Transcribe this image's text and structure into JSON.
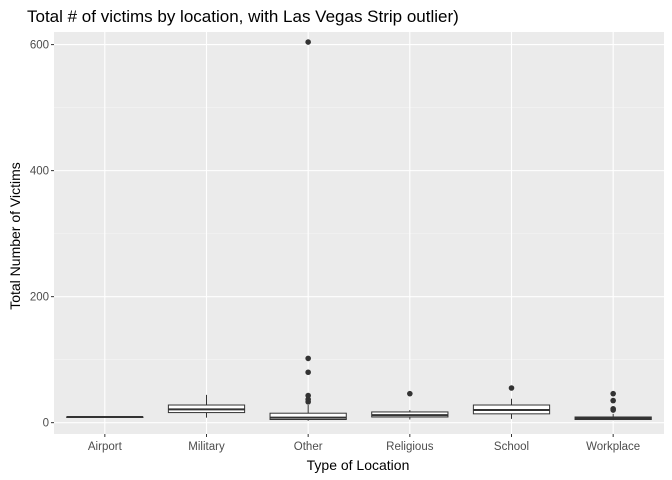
{
  "chart_data": {
    "type": "boxplot",
    "title": "Total # of victims by location, with Las Vegas Strip outlier)",
    "xlabel": "Type of Location",
    "ylabel": "Total Number of Victims",
    "ylim": [
      -18,
      620
    ],
    "yticks": [
      0,
      200,
      400,
      600
    ],
    "grid": true,
    "categories": [
      "Airport",
      "Military",
      "Other",
      "Religious",
      "School",
      "Workplace"
    ],
    "boxes": [
      {
        "category": "Airport",
        "whisker_low": 9,
        "q1": 9,
        "median": 9,
        "q3": 9,
        "whisker_high": 9,
        "outliers": []
      },
      {
        "category": "Military",
        "whisker_low": 8,
        "q1": 16,
        "median": 21,
        "q3": 28,
        "whisker_high": 44,
        "outliers": []
      },
      {
        "category": "Other",
        "whisker_low": 3,
        "q1": 5,
        "median": 8,
        "q3": 15,
        "whisker_high": 28,
        "outliers": [
          33,
          37,
          43,
          80,
          102,
          604
        ]
      },
      {
        "category": "Religious",
        "whisker_low": 5,
        "q1": 9,
        "median": 12,
        "q3": 17,
        "whisker_high": 20,
        "outliers": [
          46
        ]
      },
      {
        "category": "School",
        "whisker_low": 6,
        "q1": 14,
        "median": 20,
        "q3": 28,
        "whisker_high": 38,
        "outliers": [
          55
        ]
      },
      {
        "category": "Workplace",
        "whisker_low": 4,
        "q1": 5,
        "median": 7,
        "q3": 9,
        "whisker_high": 14,
        "outliers": [
          20,
          22,
          35,
          46
        ]
      }
    ],
    "colors": {
      "panel_bg": "#ebebeb",
      "grid_major": "#ffffff",
      "grid_minor": "#f5f5f5",
      "box_line": "#333333",
      "box_fill": "#ffffff",
      "tick_text": "#4d4d4d",
      "tick_mark": "#333333"
    }
  }
}
